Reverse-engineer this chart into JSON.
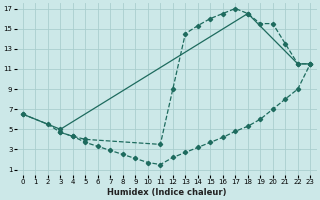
{
  "xlabel": "Humidex (Indice chaleur)",
  "xlim": [
    -0.5,
    23.5
  ],
  "ylim": [
    0.5,
    17.5
  ],
  "xticks": [
    0,
    1,
    2,
    3,
    4,
    5,
    6,
    7,
    8,
    9,
    10,
    11,
    12,
    13,
    14,
    15,
    16,
    17,
    18,
    19,
    20,
    21,
    22,
    23
  ],
  "yticks": [
    1,
    3,
    5,
    7,
    9,
    11,
    13,
    15,
    17
  ],
  "background_color": "#cce8e8",
  "grid_color": "#aacece",
  "line_color": "#1e6b5e",
  "line1_x": [
    0,
    2,
    3,
    4,
    5,
    6,
    7,
    8,
    9,
    10,
    11,
    12,
    13,
    14,
    15,
    16,
    17,
    18,
    19,
    20,
    21,
    22,
    23
  ],
  "line1_y": [
    6.5,
    5.5,
    4.7,
    4.3,
    3.7,
    3.3,
    2.9,
    2.5,
    2.1,
    1.7,
    1.5,
    2.2,
    2.7,
    3.2,
    3.7,
    4.2,
    4.8,
    5.3,
    6.0,
    7.0,
    8.0,
    9.0,
    11.5
  ],
  "line2_x": [
    3,
    4,
    5,
    11,
    12,
    13,
    14,
    15,
    16,
    17,
    18,
    19,
    20,
    21,
    22,
    23
  ],
  "line2_y": [
    4.7,
    4.3,
    4.0,
    3.5,
    9.0,
    14.5,
    15.3,
    16.0,
    16.5,
    17.0,
    16.5,
    15.5,
    15.5,
    13.5,
    11.5,
    11.5
  ],
  "line3_x": [
    0,
    3,
    18,
    22,
    23
  ],
  "line3_y": [
    6.5,
    5.0,
    16.5,
    11.5,
    11.5
  ]
}
